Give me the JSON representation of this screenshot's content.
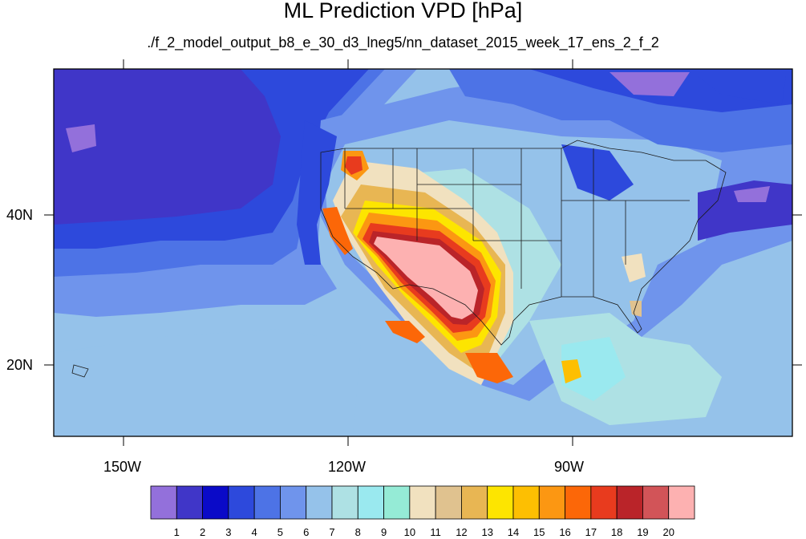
{
  "title": "ML Prediction VPD [hPa]",
  "subtitle": "./f_2_model_output_b8_e_30_d3_lneg5/nn_dataset_2015_week_17_ens_2_f_2",
  "lon_labels": [
    "150W",
    "120W",
    "90W"
  ],
  "lat_labels": [
    "40N",
    "20N"
  ],
  "colorbar": {
    "levels": [
      "1",
      "2",
      "3",
      "4",
      "5",
      "6",
      "7",
      "8",
      "9",
      "10",
      "11",
      "12",
      "13",
      "14",
      "15",
      "16",
      "17",
      "18",
      "19",
      "20"
    ],
    "colors": [
      "#9370db",
      "#4036c8",
      "#0a0ac8",
      "#2d49dc",
      "#4d73e6",
      "#6f94ec",
      "#95c2ea",
      "#aee1e4",
      "#9ae9ef",
      "#95ebd6",
      "#f1e1bf",
      "#e0c28f",
      "#e8b653",
      "#fde500",
      "#fdbf02",
      "#fc9712",
      "#fc6708",
      "#e83b1e",
      "#ba2429",
      "#d25458",
      "#fdb1b1"
    ]
  },
  "chart_data": {
    "type": "heatmap",
    "title": "ML Prediction VPD [hPa]",
    "variable": "VPD",
    "units": "hPa",
    "lon_ticks": [
      "150W",
      "120W",
      "90W"
    ],
    "lat_ticks": [
      "40N",
      "20N"
    ],
    "contour_levels": [
      1,
      2,
      3,
      4,
      5,
      6,
      7,
      8,
      9,
      10,
      11,
      12,
      13,
      14,
      15,
      16,
      17,
      18,
      19,
      20
    ]
  }
}
